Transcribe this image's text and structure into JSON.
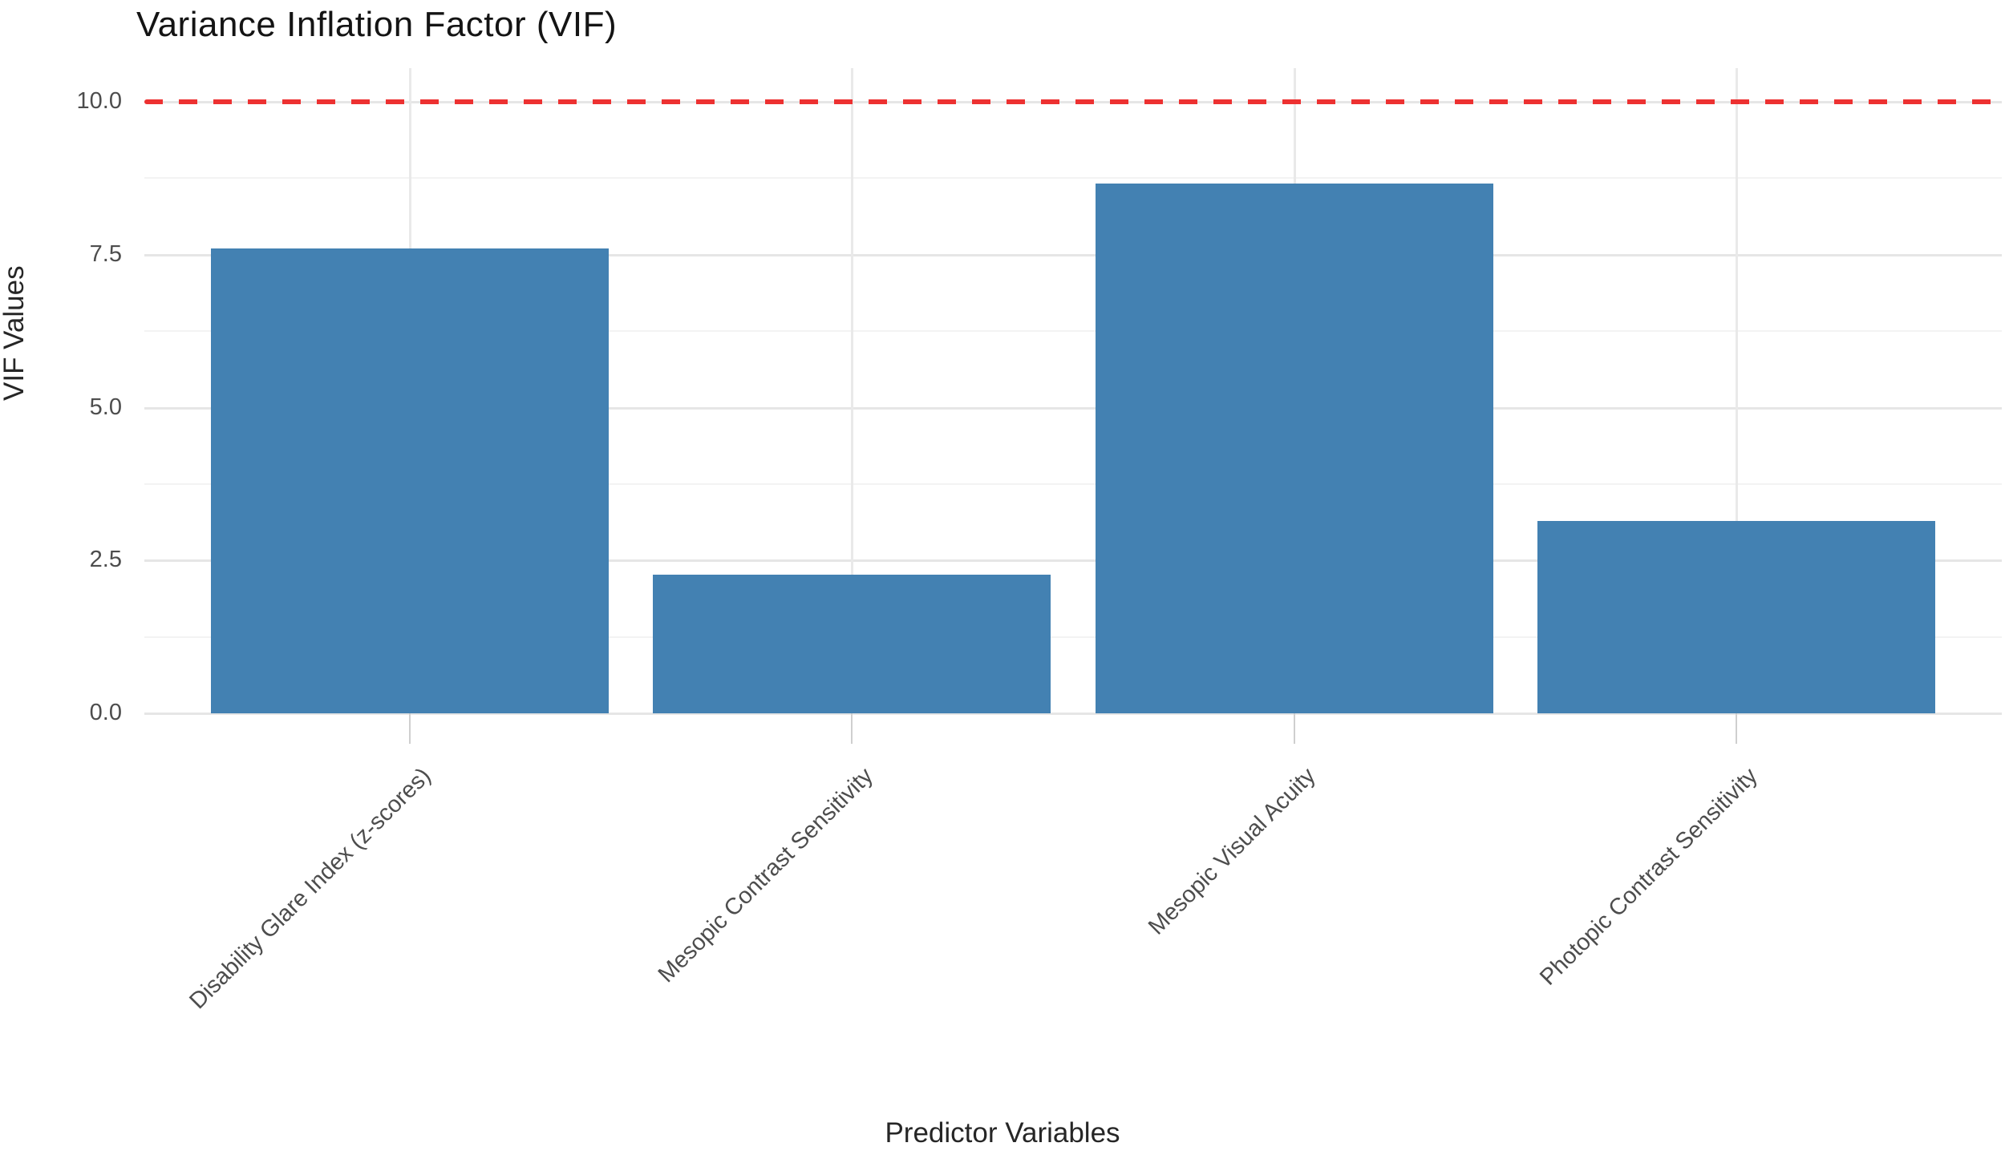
{
  "chart_data": {
    "type": "bar",
    "title": "Variance Inflation Factor (VIF)",
    "xlabel": "Predictor Variables",
    "ylabel": "VIF Values",
    "categories": [
      "Disability Glare Index (z-scores)",
      "Mesopic Contrast Sensitivity",
      "Mesopic Visual Acuity",
      "Photopic Contrast Sensitivity"
    ],
    "values": [
      7.6,
      2.27,
      8.66,
      3.15
    ],
    "ylim": [
      0,
      10
    ],
    "yticks": [
      0.0,
      2.5,
      5.0,
      7.5,
      10.0
    ],
    "ytick_labels": [
      "0.0",
      "2.5",
      "5.0",
      "7.5",
      "10.0"
    ],
    "yticks_minor": [
      1.25,
      3.75,
      6.25,
      8.75
    ],
    "grid": "major-and-minor",
    "legend": "none",
    "bar_color": "#4381B2",
    "reference_line": {
      "value": 10.0,
      "style": "dashed",
      "color": "#ED3131"
    }
  }
}
